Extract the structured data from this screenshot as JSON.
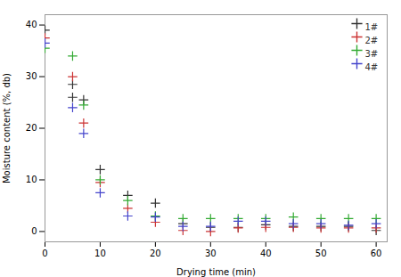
{
  "chart_data": {
    "type": "scatter",
    "xlabel": "Drying time (min)",
    "ylabel": "Moisture content (%, db)",
    "xlim": [
      0,
      62
    ],
    "ylim": [
      -2,
      42
    ],
    "xticks": [
      0,
      10,
      20,
      30,
      40,
      50,
      60
    ],
    "yticks": [
      0,
      10,
      20,
      30,
      40
    ],
    "legend": "upper right",
    "series": [
      {
        "name": "1#",
        "color": "#333333",
        "marker": "plus",
        "x": [
          0,
          5,
          5,
          7,
          10,
          15,
          20,
          25,
          30,
          35,
          40,
          45,
          50,
          55,
          60
        ],
        "values": [
          39.0,
          28.5,
          26.0,
          25.5,
          12.0,
          7.0,
          5.5,
          1.5,
          0.8,
          0.8,
          1.3,
          1.0,
          1.0,
          1.0,
          0.2
        ]
      },
      {
        "name": "2#",
        "color": "#cc3333",
        "marker": "plus",
        "x": [
          0,
          5,
          7,
          10,
          15,
          20,
          25,
          30,
          35,
          40,
          45,
          50,
          55,
          60
        ],
        "values": [
          37.5,
          30.0,
          21.0,
          9.5,
          4.5,
          1.8,
          0.2,
          0.0,
          0.7,
          0.8,
          0.8,
          0.7,
          0.7,
          0.7
        ]
      },
      {
        "name": "3#",
        "color": "#33aa33",
        "marker": "plus",
        "x": [
          0,
          5,
          7,
          10,
          15,
          20,
          25,
          30,
          35,
          40,
          45,
          50,
          55,
          60
        ],
        "values": [
          35.5,
          34.0,
          24.5,
          10.0,
          6.0,
          3.0,
          2.5,
          2.5,
          2.5,
          2.5,
          2.8,
          2.5,
          2.5,
          2.5
        ]
      },
      {
        "name": "4#",
        "color": "#4444cc",
        "marker": "plus",
        "x": [
          0,
          5,
          7,
          10,
          15,
          20,
          25,
          30,
          35,
          40,
          45,
          50,
          55,
          60
        ],
        "values": [
          36.5,
          24.0,
          19.0,
          7.5,
          3.0,
          2.8,
          1.0,
          1.0,
          2.0,
          2.0,
          1.5,
          1.5,
          1.2,
          1.5
        ]
      }
    ]
  }
}
